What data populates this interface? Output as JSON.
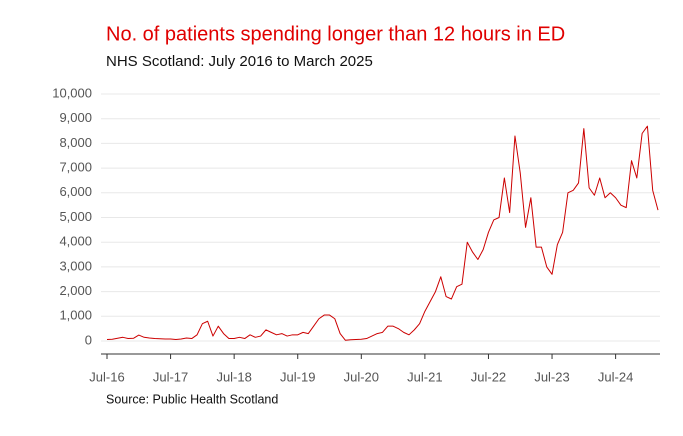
{
  "chart_data": {
    "type": "line",
    "title": "No. of patients spending longer than 12 hours in ED",
    "subtitle": "NHS Scotland: July 2016 to March 2025",
    "source": "Source: Public Health Scotland",
    "categories": [
      "Jul-16",
      null,
      null,
      null,
      null,
      null,
      null,
      null,
      null,
      null,
      null,
      null,
      "Jul-17",
      null,
      null,
      null,
      null,
      null,
      null,
      null,
      null,
      null,
      null,
      null,
      "Jul-18",
      null,
      null,
      null,
      null,
      null,
      null,
      null,
      null,
      null,
      null,
      null,
      "Jul-19",
      null,
      null,
      null,
      null,
      null,
      null,
      null,
      null,
      null,
      null,
      null,
      "Jul-20",
      null,
      null,
      null,
      null,
      null,
      null,
      null,
      null,
      null,
      null,
      null,
      "Jul-21",
      null,
      null,
      null,
      null,
      null,
      null,
      null,
      null,
      null,
      null,
      null,
      "Jul-22",
      null,
      null,
      null,
      null,
      null,
      null,
      null,
      null,
      null,
      null,
      null,
      "Jul-23",
      null,
      null,
      null,
      null,
      null,
      null,
      null,
      null,
      null,
      null,
      null,
      "Jul-24",
      null,
      null,
      null,
      null,
      null,
      null,
      null,
      null
    ],
    "series": [
      {
        "color": "#cc0000",
        "values": [
          60,
          70,
          110,
          150,
          100,
          110,
          240,
          150,
          120,
          100,
          90,
          80,
          80,
          60,
          80,
          120,
          100,
          250,
          700,
          800,
          200,
          600,
          300,
          100,
          100,
          150,
          100,
          250,
          150,
          200,
          450,
          350,
          250,
          300,
          200,
          250,
          250,
          350,
          300,
          600,
          900,
          1050,
          1050,
          900,
          300,
          30,
          50,
          60,
          70,
          100,
          200,
          300,
          350,
          600,
          600,
          500,
          350,
          250,
          450,
          700,
          1200,
          1600,
          2000,
          2600,
          1800,
          1700,
          2200,
          2300,
          4000,
          3600,
          3300,
          3700,
          4400,
          4900,
          5000,
          6600,
          5200,
          8300,
          6800,
          4600,
          5800,
          3800,
          3800,
          3000,
          2700,
          3900,
          4400,
          6000,
          6100,
          6400,
          8600,
          6200,
          5900,
          6600,
          5800,
          6000,
          5800,
          5500,
          5400,
          7300,
          6600,
          8400,
          8700,
          6100,
          5300
        ]
      }
    ],
    "ylim": [
      0,
      10000
    ],
    "yticks": [
      0,
      {
        "value": 1000,
        "label": "1,000"
      },
      {
        "value": 2000,
        "label": "2,000"
      },
      {
        "value": 3000,
        "label": "3,000"
      },
      {
        "value": 4000,
        "label": "4,000"
      },
      {
        "value": 5000,
        "label": "5,000"
      },
      {
        "value": 6000,
        "label": "6,000"
      },
      {
        "value": 7000,
        "label": "7,000"
      },
      {
        "value": 8000,
        "label": "8,000"
      },
      {
        "value": 9000,
        "label": "9,000"
      },
      {
        "value": 10000,
        "label": "10,000"
      }
    ],
    "grid": true
  }
}
